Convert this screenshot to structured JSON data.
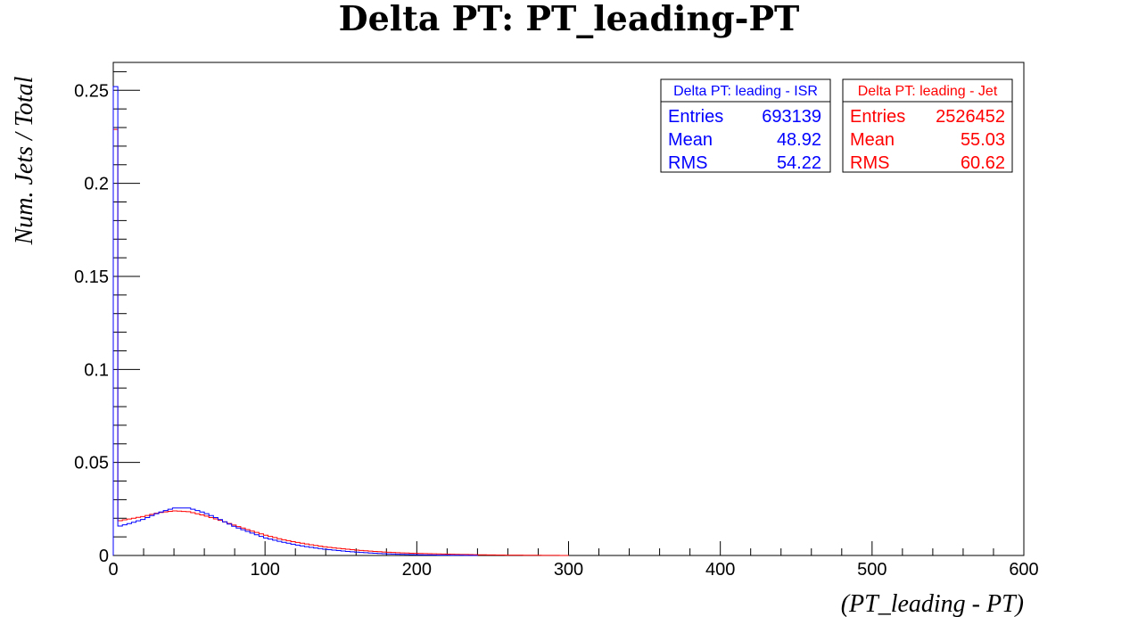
{
  "chart_data": {
    "type": "line",
    "title": "Delta PT: PT_leading-PT",
    "xlabel": "(PT_leading - PT)",
    "ylabel": "Num. Jets / Total",
    "xlim": [
      0,
      600
    ],
    "ylim": [
      0,
      0.265
    ],
    "x_ticks": [
      0,
      100,
      200,
      300,
      400,
      500,
      600
    ],
    "y_ticks": [
      0,
      0.05,
      0.1,
      0.15,
      0.2,
      0.25
    ],
    "x_tick_labels": [
      "0",
      "100",
      "200",
      "300",
      "400",
      "500",
      "600"
    ],
    "y_tick_labels": [
      "0",
      "0.05",
      "0.1",
      "0.15",
      "0.2",
      "0.25"
    ],
    "grid": false,
    "legend_position": "top-right",
    "bin_width": 3,
    "series": [
      {
        "name": "Delta PT: leading - ISR",
        "color": "#0000ff",
        "stats": [
          {
            "label": "Entries",
            "value": "693139"
          },
          {
            "label": "Mean",
            "value": "48.92"
          },
          {
            "label": "RMS",
            "value": "54.22"
          }
        ],
        "points": [
          [
            0,
            0.252
          ],
          [
            3,
            0.0155
          ],
          [
            10,
            0.017
          ],
          [
            20,
            0.0195
          ],
          [
            30,
            0.023
          ],
          [
            40,
            0.0255
          ],
          [
            50,
            0.0255
          ],
          [
            60,
            0.023
          ],
          [
            70,
            0.0195
          ],
          [
            80,
            0.0155
          ],
          [
            90,
            0.0125
          ],
          [
            100,
            0.0095
          ],
          [
            110,
            0.0075
          ],
          [
            120,
            0.0058
          ],
          [
            130,
            0.0044
          ],
          [
            140,
            0.0033
          ],
          [
            150,
            0.0025
          ],
          [
            160,
            0.0018
          ],
          [
            170,
            0.0013
          ],
          [
            180,
            0.0009
          ],
          [
            190,
            0.0006
          ],
          [
            200,
            0.0004
          ],
          [
            215,
            0.0002
          ],
          [
            230,
            0.0001
          ],
          [
            240,
            0.0
          ]
        ]
      },
      {
        "name": "Delta PT: leading - Jet",
        "color": "#ff0000",
        "stats": [
          {
            "label": "Entries",
            "value": "2526452"
          },
          {
            "label": "Mean",
            "value": "55.03"
          },
          {
            "label": "RMS",
            "value": "60.62"
          }
        ],
        "points": [
          [
            0,
            0.229
          ],
          [
            3,
            0.0185
          ],
          [
            10,
            0.0195
          ],
          [
            20,
            0.021
          ],
          [
            30,
            0.023
          ],
          [
            40,
            0.024
          ],
          [
            50,
            0.0235
          ],
          [
            60,
            0.0215
          ],
          [
            70,
            0.019
          ],
          [
            80,
            0.0162
          ],
          [
            90,
            0.0135
          ],
          [
            100,
            0.011
          ],
          [
            110,
            0.0089
          ],
          [
            120,
            0.0072
          ],
          [
            130,
            0.0058
          ],
          [
            140,
            0.0046
          ],
          [
            150,
            0.0037
          ],
          [
            160,
            0.0029
          ],
          [
            170,
            0.0023
          ],
          [
            180,
            0.0018
          ],
          [
            190,
            0.0014
          ],
          [
            200,
            0.0011
          ],
          [
            220,
            0.0007
          ],
          [
            240,
            0.0004
          ],
          [
            260,
            0.0002
          ],
          [
            280,
            0.0001
          ],
          [
            300,
            0.0
          ]
        ]
      }
    ]
  }
}
